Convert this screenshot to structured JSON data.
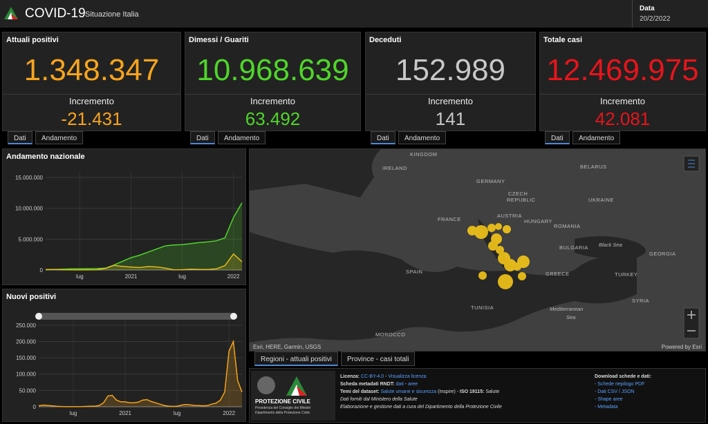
{
  "header": {
    "title": "COVID-19",
    "subtitle": "Situazione Italia",
    "date_label": "Data",
    "date": "20/2/2022"
  },
  "cards": [
    {
      "title": "Attuali positivi",
      "value": "1.348.347",
      "increment_label": "Incremento",
      "increment": "-21.431",
      "color": "#f7a41d",
      "tabs": [
        "Dati",
        "Andamento"
      ]
    },
    {
      "title": "Dimessi / Guariti",
      "value": "10.968.639",
      "increment_label": "Incremento",
      "increment": "63.492",
      "color": "#4fd62a",
      "tabs": [
        "Dati",
        "Andamento"
      ]
    },
    {
      "title": "Deceduti",
      "value": "152.989",
      "increment_label": "Incremento",
      "increment": "141",
      "color": "#c8c8c8",
      "tabs": [
        "Dati",
        "Andamento"
      ]
    },
    {
      "title": "Totale casi",
      "value": "12.469.975",
      "increment_label": "Incremento",
      "increment": "42.081",
      "color": "#e8141b",
      "tabs": [
        "Dati",
        "Andamento"
      ]
    }
  ],
  "chart_data": [
    {
      "type": "line",
      "title": "Andamento nazionale",
      "area": true,
      "categories": [
        null,
        null,
        null,
        null,
        "lug",
        null,
        null,
        null,
        null,
        null,
        "2021",
        null,
        null,
        null,
        null,
        null,
        "lug",
        null,
        null,
        null,
        null,
        null,
        "2022",
        null
      ],
      "series": [
        {
          "color": "#4fd62a",
          "values": [
            10000,
            80000,
            150000,
            180000,
            200000,
            210000,
            230000,
            300000,
            800000,
            1400000,
            2000000,
            2400000,
            2900000,
            3400000,
            3900000,
            4050000,
            4120000,
            4280000,
            4450000,
            4560000,
            4730000,
            5200000,
            8500000,
            10900000
          ]
        },
        {
          "color": "#e0b81e",
          "values": [
            80000,
            100000,
            50000,
            20000,
            12000,
            20000,
            45000,
            250000,
            750000,
            580000,
            480000,
            400000,
            560000,
            500000,
            300000,
            50000,
            60000,
            130000,
            100000,
            80000,
            200000,
            700000,
            2600000,
            1350000
          ]
        }
      ],
      "ylim": [
        0,
        16000000
      ],
      "yticks": [
        0,
        {
          "value": 5000000,
          "label": "5.000.000"
        },
        {
          "value": 10000000,
          "label": "10.000.000"
        },
        {
          "value": 15000000,
          "label": "15.000.000"
        }
      ],
      "grid": true
    },
    {
      "type": "line",
      "title": "Nuovi positivi",
      "area": true,
      "categories": [
        null,
        null,
        null,
        null,
        null,
        null,
        null,
        null,
        "lug",
        null,
        null,
        null,
        null,
        null,
        null,
        null,
        null,
        null,
        null,
        null,
        "2021",
        null,
        null,
        null,
        null,
        null,
        null,
        null,
        null,
        null,
        null,
        null,
        "lug",
        null,
        null,
        null,
        null,
        null,
        null,
        null,
        null,
        null,
        null,
        null,
        "2022",
        null,
        null,
        null
      ],
      "series": [
        {
          "color": "#f7a41d",
          "values": [
            3000,
            5000,
            4000,
            3000,
            1500,
            800,
            300,
            300,
            200,
            250,
            400,
            1000,
            1500,
            1700,
            4000,
            12000,
            33000,
            35000,
            20000,
            15000,
            15000,
            12000,
            12000,
            14000,
            20000,
            22000,
            16000,
            12000,
            8000,
            4000,
            2000,
            1000,
            1500,
            5000,
            7000,
            6000,
            4000,
            3500,
            3000,
            3500,
            8000,
            11000,
            20000,
            45000,
            170000,
            200000,
            80000,
            45000
          ]
        }
      ],
      "ylim": [
        0,
        275000
      ],
      "yticks": [
        0,
        {
          "value": 50000,
          "label": "50.000"
        },
        {
          "value": 100000,
          "label": "100.000"
        },
        {
          "value": 150000,
          "label": "150.000"
        },
        {
          "value": 200000,
          "label": "200.000"
        },
        {
          "value": 250000,
          "label": "250.000"
        }
      ],
      "grid": true
    }
  ],
  "map": {
    "labels": [
      "KINGDOM",
      "IRELAND",
      "BELARUS",
      "GERMANY",
      "CZECH",
      "REPUBLIC",
      "UKRAINE",
      "FRANCE",
      "AUSTRIA",
      "HUNGARY",
      "ROMANIA",
      "BULGARIA",
      "Black Sea",
      "GEORGIA",
      "SPAIN",
      "GREECE",
      "TURKEY",
      "TUNISIA",
      "Mediterranean",
      "Sea",
      "SYRIA",
      "MOROCCO"
    ],
    "attribution": "Esri, HERE, Garmin, USGS",
    "powered": "Powered by Esri",
    "tabs": [
      "Regioni - attuali positivi",
      "Province - casi totali"
    ]
  },
  "footer": {
    "logo_title": "PROTEZIONE CIVILE",
    "logo_line1": "Presidenza del Consiglio dei Ministri",
    "logo_line2": "Dipartimento della Protezione Civile",
    "info": [
      [
        {
          "text": "Licenza: ",
          "bold": true
        },
        {
          "text": "CC-BY-4.0",
          "link": true
        },
        {
          "text": " - "
        },
        {
          "text": "Visualizza licenza",
          "link": true
        }
      ],
      [
        {
          "text": "Scheda metadati RNDT: ",
          "bold": true
        },
        {
          "text": "dati",
          "link": true
        },
        {
          "text": " - "
        },
        {
          "text": "aree",
          "link": true
        }
      ],
      [
        {
          "text": "Temi del dataset: ",
          "bold": true
        },
        {
          "text": "Salute umane e sicurezza",
          "link": true
        },
        {
          "text": " (Inspire) - "
        },
        {
          "text": "ISO 19115: ",
          "bold": true
        },
        {
          "text": "Salute"
        }
      ],
      [
        {
          "text": "Dati forniti dal Ministero della Salute",
          "italic": true
        }
      ],
      [
        {
          "text": "Elaborazione e gestione dati a cura del Dipartimento della Protezione Civile",
          "italic": true
        }
      ]
    ],
    "download_title": "Download schede e dati:",
    "downloads": [
      "- Schede riepilogo PDF",
      "- Dati CSV / JSON",
      "- Shape aree",
      "- Metadata"
    ]
  }
}
